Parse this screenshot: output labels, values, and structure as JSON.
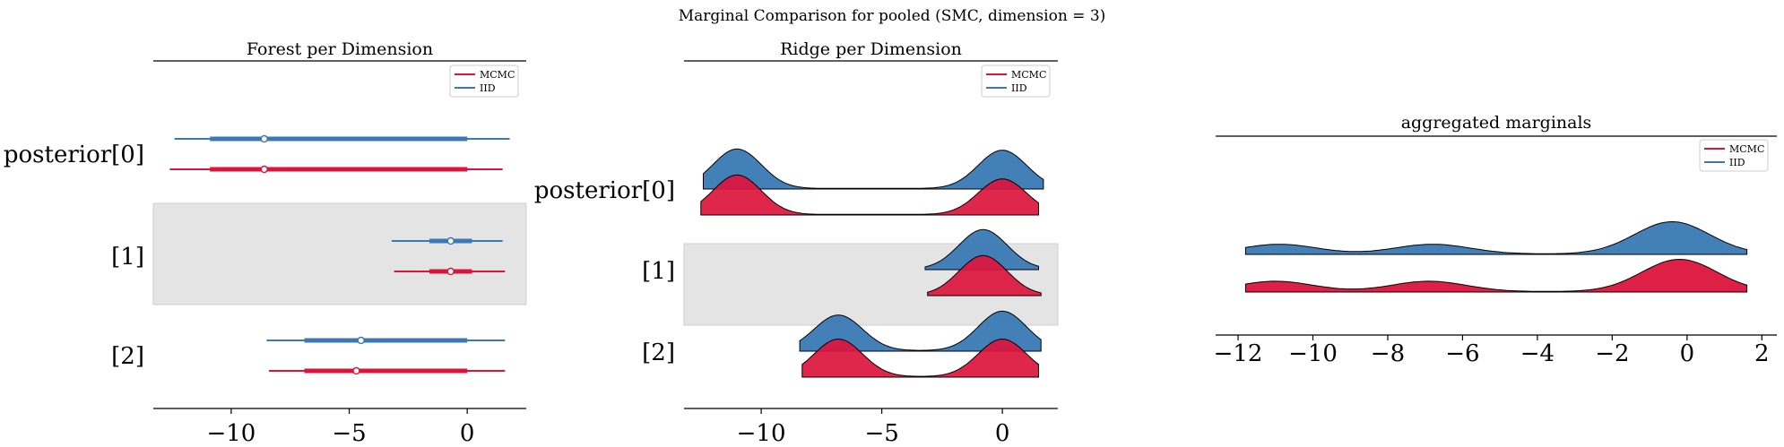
{
  "figure_title": "Marginal Comparison for pooled (SMC, dimension = 3)",
  "colors": {
    "MCMC": "#dc143c",
    "IID": "#3a79b4",
    "band": "#e4e4e4"
  },
  "chart_data": [
    {
      "type": "forest",
      "title": "Forest per Dimension",
      "xlim": [
        -13.3,
        2.5
      ],
      "xticks": [
        -10,
        -5,
        0
      ],
      "xtick_labels": [
        "−10",
        "−5",
        "0"
      ],
      "labels": [
        "posterior[0]",
        "[1]",
        "[2]"
      ],
      "legend": [
        "MCMC",
        "IID"
      ],
      "series": [
        {
          "name": "MCMC",
          "items": [
            {
              "label": "posterior[0]",
              "point": -8.6,
              "hdi_low": -12.6,
              "hdi_high": 1.5,
              "iqr_low": -10.9,
              "iqr_high": 0.0
            },
            {
              "label": "[1]",
              "point": -0.7,
              "hdi_low": -3.1,
              "hdi_high": 1.6,
              "iqr_low": -1.6,
              "iqr_high": 0.2
            },
            {
              "label": "[2]",
              "point": -4.7,
              "hdi_low": -8.4,
              "hdi_high": 1.6,
              "iqr_low": -6.9,
              "iqr_high": 0.0
            }
          ]
        },
        {
          "name": "IID",
          "items": [
            {
              "label": "posterior[0]",
              "point": -8.6,
              "hdi_low": -12.4,
              "hdi_high": 1.8,
              "iqr_low": -10.9,
              "iqr_high": 0.0
            },
            {
              "label": "[1]",
              "point": -0.7,
              "hdi_low": -3.2,
              "hdi_high": 1.5,
              "iqr_low": -1.6,
              "iqr_high": 0.2
            },
            {
              "label": "[2]",
              "point": -4.5,
              "hdi_low": -8.5,
              "hdi_high": 1.6,
              "iqr_low": -6.9,
              "iqr_high": 0.0
            }
          ]
        }
      ]
    },
    {
      "type": "ridge",
      "title": "Ridge per Dimension",
      "xlim": [
        -13.2,
        2.3
      ],
      "xticks": [
        -10,
        -5,
        0
      ],
      "xtick_labels": [
        "−10",
        "−5",
        "0"
      ],
      "labels": [
        "posterior[0]",
        "[1]",
        "[2]"
      ],
      "legend": [
        "MCMC",
        "IID"
      ],
      "series": [
        {
          "name": "MCMC",
          "ridges": [
            {
              "label": "posterior[0]",
              "range": [
                -12.5,
                1.5
              ],
              "peaks": [
                [
                  -11.0,
                  1.0,
                  1.0
                ],
                [
                  0.0,
                  1.0,
                  0.9
                ]
              ]
            },
            {
              "label": "[1]",
              "range": [
                -3.1,
                1.6
              ],
              "peaks": [
                [
                  -0.8,
                  1.0,
                  1.0
                ]
              ]
            },
            {
              "label": "[2]",
              "range": [
                -8.3,
                1.5
              ],
              "peaks": [
                [
                  -6.8,
                  1.0,
                  0.95
                ],
                [
                  0.0,
                  1.0,
                  0.95
                ]
              ]
            }
          ]
        },
        {
          "name": "IID",
          "ridges": [
            {
              "label": "posterior[0]",
              "range": [
                -12.4,
                1.7
              ],
              "peaks": [
                [
                  -11.0,
                  1.0,
                  1.0
                ],
                [
                  0.0,
                  1.0,
                  0.97
                ]
              ]
            },
            {
              "label": "[1]",
              "range": [
                -3.2,
                1.5
              ],
              "peaks": [
                [
                  -0.8,
                  1.0,
                  1.0
                ]
              ]
            },
            {
              "label": "[2]",
              "range": [
                -8.4,
                1.6
              ],
              "peaks": [
                [
                  -6.8,
                  1.0,
                  0.9
                ],
                [
                  0.0,
                  1.0,
                  1.0
                ]
              ]
            }
          ]
        }
      ]
    },
    {
      "type": "ridge",
      "title": "aggregated marginals",
      "xlim": [
        -12.6,
        2.4
      ],
      "xticks": [
        -12,
        -10,
        -8,
        -6,
        -4,
        -2,
        0,
        2
      ],
      "xtick_labels": [
        "−12",
        "−10",
        "−8",
        "−6",
        "−4",
        "−2",
        "0",
        "2"
      ],
      "legend": [
        "MCMC",
        "IID"
      ],
      "series": [
        {
          "name": "MCMC",
          "range": [
            -11.8,
            1.6
          ],
          "peaks": [
            [
              -11.0,
              1.0,
              0.32
            ],
            [
              -6.9,
              1.0,
              0.32
            ],
            [
              -0.2,
              1.0,
              1.0
            ]
          ]
        },
        {
          "name": "IID",
          "range": [
            -11.8,
            1.6
          ],
          "peaks": [
            [
              -10.9,
              1.0,
              0.3
            ],
            [
              -6.8,
              1.0,
              0.3
            ],
            [
              -0.4,
              1.0,
              1.0
            ]
          ]
        }
      ]
    }
  ]
}
